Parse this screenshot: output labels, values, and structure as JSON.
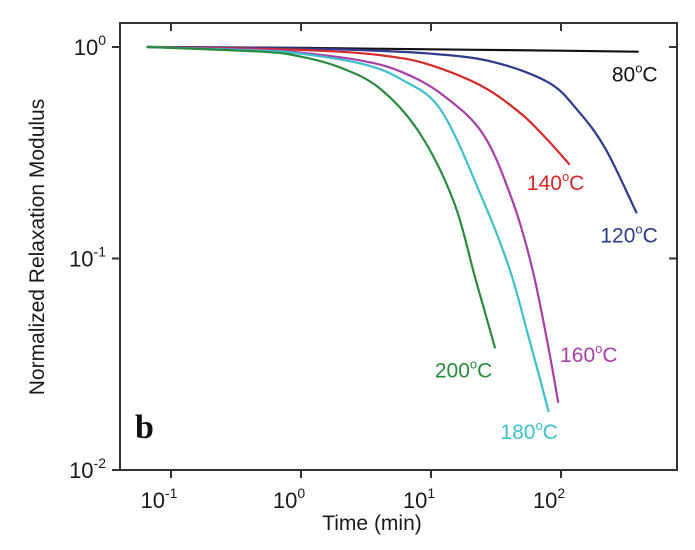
{
  "chart_data": {
    "type": "line",
    "title": "",
    "panel_label": "b",
    "xlabel": "Time (min)",
    "ylabel": "Normalized Relaxation Modulus",
    "xscale": "log",
    "yscale": "log",
    "xlim": [
      0.04,
      1000
    ],
    "ylim": [
      0.01,
      1.3
    ],
    "grid": false,
    "legend": "inline labels at curve ends",
    "xticks": [
      {
        "base": "10",
        "exp": "-1",
        "value": 0.1
      },
      {
        "base": "10",
        "exp": "0",
        "value": 1
      },
      {
        "base": "10",
        "exp": "1",
        "value": 10
      },
      {
        "base": "10",
        "exp": "2",
        "value": 100
      }
    ],
    "yticks": [
      {
        "base": "10",
        "exp": "0",
        "value": 1
      },
      {
        "base": "10",
        "exp": "-1",
        "value": 0.1
      },
      {
        "base": "10",
        "exp": "-2",
        "value": 0.01
      }
    ],
    "series": [
      {
        "name": "80°C",
        "temp": "80",
        "color": "#111111",
        "x": [
          0.066,
          0.3,
          1,
          10,
          100,
          390
        ],
        "y": [
          1.0,
          0.995,
          0.99,
          0.975,
          0.96,
          0.95
        ]
      },
      {
        "name": "120°C",
        "temp": "120",
        "color": "#2e3a8c",
        "x": [
          0.066,
          0.5,
          2,
          10,
          30,
          80,
          135,
          220,
          380
        ],
        "y": [
          1.0,
          0.99,
          0.975,
          0.93,
          0.85,
          0.68,
          0.5,
          0.33,
          0.165
        ]
      },
      {
        "name": "140°C",
        "temp": "140",
        "color": "#d42a2a",
        "x": [
          0.066,
          0.5,
          2,
          5,
          10,
          25,
          50,
          80,
          115
        ],
        "y": [
          1.0,
          0.98,
          0.95,
          0.9,
          0.82,
          0.65,
          0.48,
          0.36,
          0.28
        ]
      },
      {
        "name": "160°C",
        "temp": "160",
        "color": "#a83fa8",
        "x": [
          0.066,
          0.5,
          1,
          3,
          6,
          12,
          25,
          42,
          60,
          80,
          95
        ],
        "y": [
          1.0,
          0.97,
          0.94,
          0.86,
          0.76,
          0.6,
          0.39,
          0.19,
          0.09,
          0.038,
          0.021
        ]
      },
      {
        "name": "180°C",
        "temp": "180",
        "color": "#3fbfcc",
        "x": [
          0.066,
          0.5,
          1,
          3,
          6,
          12,
          25,
          40,
          55,
          70,
          80
        ],
        "y": [
          1.0,
          0.96,
          0.93,
          0.83,
          0.7,
          0.5,
          0.19,
          0.09,
          0.045,
          0.026,
          0.019
        ]
      },
      {
        "name": "200°C",
        "temp": "200",
        "color": "#2a8a3e",
        "x": [
          0.066,
          0.5,
          1,
          2,
          4,
          8,
          14.8,
          22,
          31
        ],
        "y": [
          1.0,
          0.95,
          0.9,
          0.8,
          0.64,
          0.4,
          0.189,
          0.08,
          0.038
        ]
      }
    ]
  },
  "labels": {
    "deg_c": "C",
    "deg": "o"
  }
}
